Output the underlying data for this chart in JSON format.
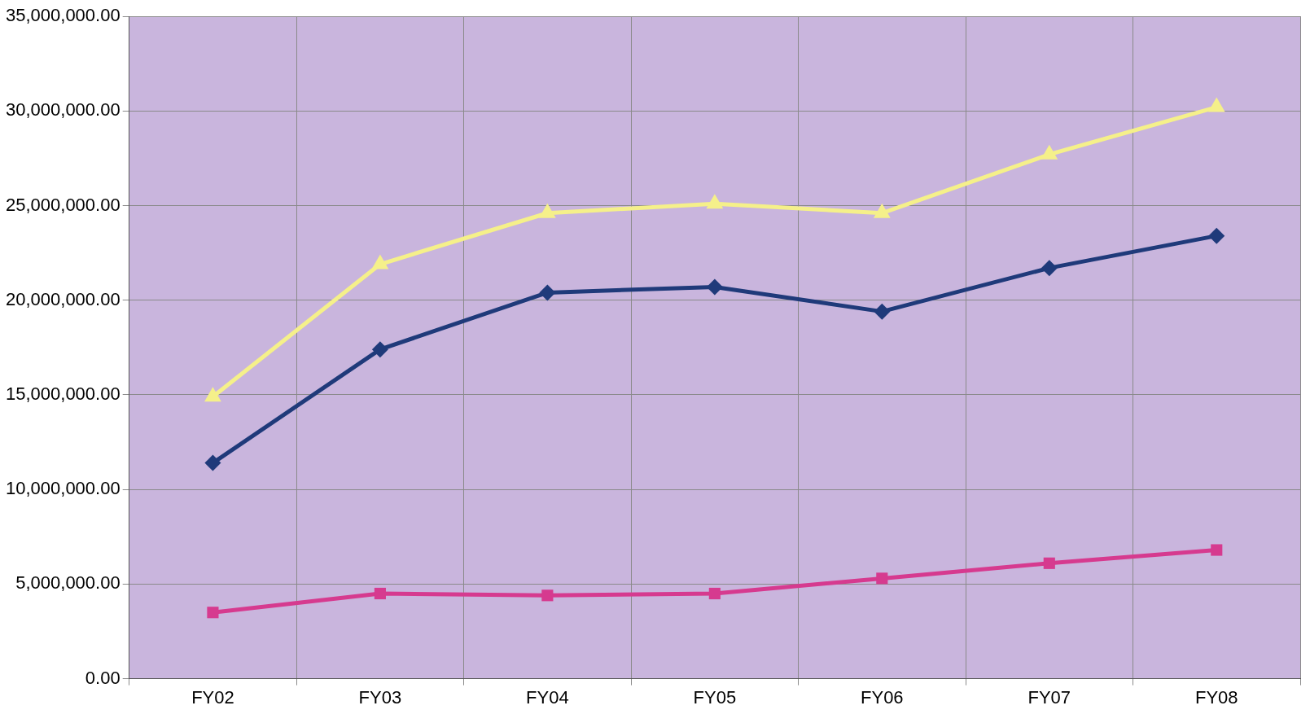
{
  "chart_data": {
    "type": "line",
    "categories": [
      "FY02",
      "FY03",
      "FY04",
      "FY05",
      "FY06",
      "FY07",
      "FY08"
    ],
    "series": [
      {
        "color": "#1f3a7a",
        "marker": "diamond",
        "values": [
          11400000,
          17400000,
          20400000,
          20700000,
          19400000,
          21700000,
          23400000
        ]
      },
      {
        "color": "#d63a8f",
        "marker": "square",
        "values": [
          3500000,
          4500000,
          4400000,
          4500000,
          5300000,
          6100000,
          6800000
        ]
      },
      {
        "color": "#f5f08a",
        "marker": "triangle",
        "values": [
          14900000,
          21900000,
          24600000,
          25100000,
          24600000,
          27700000,
          30200000
        ]
      }
    ],
    "ylim": [
      0,
      35000000
    ],
    "yticks": [
      {
        "value": 0,
        "label": "0.00"
      },
      {
        "value": 5000000,
        "label": "5,000,000.00"
      },
      {
        "value": 10000000,
        "label": "10,000,000.00"
      },
      {
        "value": 15000000,
        "label": "15,000,000.00"
      },
      {
        "value": 20000000,
        "label": "20,000,000.00"
      },
      {
        "value": 25000000,
        "label": "25,000,000.00"
      },
      {
        "value": 30000000,
        "label": "30,000,000.00"
      },
      {
        "value": 35000000,
        "label": "35,000,000.00"
      }
    ],
    "grid": true,
    "legend": false,
    "line_style": "solid"
  }
}
